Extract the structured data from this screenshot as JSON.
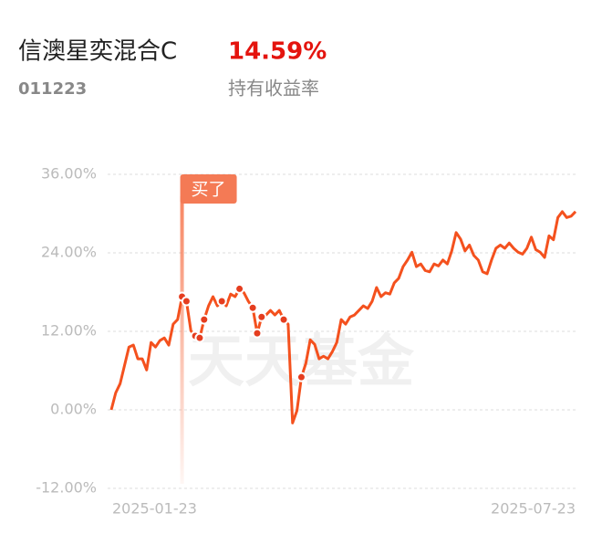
{
  "header": {
    "name": "信澳星奕混合C",
    "return": "14.59%",
    "code": "011223",
    "return_caption": "持有收益率"
  },
  "chart_data": {
    "type": "line",
    "watermark": "天天基金",
    "annotation": {
      "text": "买了",
      "index": 16
    },
    "marked_points": [
      16,
      17,
      19,
      20,
      21,
      25,
      29,
      32,
      33,
      34,
      39,
      43
    ],
    "categories": [
      "2025-01-23",
      null,
      null,
      null,
      null,
      null,
      null,
      null,
      null,
      null,
      null,
      null,
      null,
      null,
      null,
      null,
      null,
      null,
      null,
      null,
      null,
      null,
      null,
      null,
      null,
      null,
      null,
      null,
      null,
      null,
      null,
      null,
      null,
      null,
      null,
      null,
      null,
      null,
      null,
      null,
      null,
      null,
      null,
      null,
      null,
      null,
      null,
      null,
      null,
      null,
      null,
      null,
      null,
      null,
      null,
      null,
      null,
      null,
      null,
      null,
      null,
      null,
      null,
      null,
      null,
      null,
      null,
      null,
      null,
      null,
      null,
      null,
      null,
      null,
      null,
      null,
      null,
      null,
      null,
      null,
      null,
      null,
      null,
      null,
      null,
      null,
      null,
      null,
      null,
      null,
      null,
      null,
      null,
      null,
      null,
      null,
      null,
      null,
      null,
      null,
      null,
      null,
      null,
      null,
      null,
      "2025-07-23"
    ],
    "series": [
      {
        "color": "#f4511e",
        "values": [
          0,
          2.6,
          4,
          6.8,
          9.6,
          9.9,
          7.8,
          7.8,
          6.1,
          10.3,
          9.6,
          10.6,
          11,
          9.9,
          13.1,
          13.8,
          17.3,
          16.6,
          12.1,
          11.3,
          11,
          13.8,
          15.9,
          17.3,
          15.9,
          16.6,
          15.9,
          17.7,
          17.3,
          18.5,
          17.9,
          16.6,
          15.6,
          11.7,
          14.2,
          14.5,
          15.2,
          14.5,
          15.2,
          13.8,
          13.1,
          -2,
          -0.1,
          5,
          7.1,
          10.7,
          10,
          7.8,
          8.2,
          7.8,
          8.9,
          10.3,
          13.8,
          13.1,
          14.2,
          14.5,
          15.2,
          15.9,
          15.5,
          16.6,
          18.7,
          17.3,
          17.9,
          17.7,
          19.4,
          20.1,
          21.9,
          22.9,
          24.1,
          21.9,
          22.3,
          21.3,
          21.1,
          22.3,
          22,
          22.9,
          22.3,
          24.3,
          27.1,
          26.1,
          24.3,
          25.2,
          23.6,
          22.9,
          21.1,
          20.8,
          22.9,
          24.7,
          25.2,
          24.7,
          25.5,
          24.7,
          24.1,
          23.8,
          24.7,
          26.4,
          24.5,
          24.1,
          23.3,
          26.6,
          26,
          29.4,
          30.3,
          29.4,
          29.6,
          30.3
        ]
      }
    ],
    "ylim": [
      -12,
      36
    ],
    "yticks": [
      {
        "value": -12,
        "label": "-12.00%"
      },
      {
        "value": 0,
        "label": "0.00%"
      },
      {
        "value": 12,
        "label": "12.00%"
      },
      {
        "value": 24,
        "label": "24.00%"
      },
      {
        "value": 36,
        "label": "36.00%"
      }
    ],
    "grid": true
  }
}
